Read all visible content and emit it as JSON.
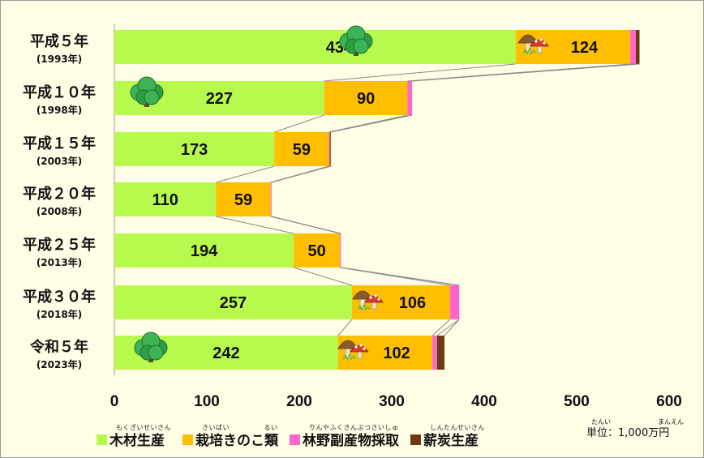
{
  "chart_data": {
    "type": "bar",
    "orientation": "horizontal",
    "stacked": true,
    "categories": [
      {
        "era": "平成５年",
        "year": "(1993年)"
      },
      {
        "era": "平成１０年",
        "year": "(1998年)"
      },
      {
        "era": "平成１５年",
        "year": "(2003年)"
      },
      {
        "era": "平成２０年",
        "year": "(2008年)"
      },
      {
        "era": "平成２５年",
        "year": "(2013年)"
      },
      {
        "era": "平成３０年",
        "year": "(2018年)"
      },
      {
        "era": "令和５年",
        "year": "(2023年)"
      }
    ],
    "series": [
      {
        "name": "木材生産",
        "ruby": "もくざいせいさん",
        "color": "#b7f94d",
        "values": [
          434,
          227,
          173,
          110,
          194,
          257,
          242
        ]
      },
      {
        "name": "栽培きのこ類",
        "ruby": "さいばい　　　　　るい",
        "color": "#ffbf00",
        "values": [
          124,
          90,
          59,
          59,
          50,
          106,
          102
        ]
      },
      {
        "name": "林野副産物採取",
        "ruby": "りんやふくさんぶつさいしゅ",
        "color": "#ff66cc",
        "values": [
          6,
          5,
          1,
          1,
          1,
          10,
          5
        ]
      },
      {
        "name": "薪炭生産",
        "ruby": "しんたんせいさん",
        "color": "#6b3a12",
        "values": [
          4,
          0,
          1,
          0,
          0,
          0,
          8
        ]
      }
    ],
    "value_labels": {
      "木材生産": [
        "434",
        "227",
        "173",
        "110",
        "194",
        "257",
        "242"
      ],
      "栽培きのこ類": [
        "124",
        "90",
        "59",
        "59",
        "50",
        "106",
        "102"
      ]
    },
    "xlim": [
      0,
      600
    ],
    "xticks": [
      "0",
      "100",
      "200",
      "300",
      "400",
      "500",
      "600"
    ],
    "connector_lines": true,
    "legend_position": "bottom",
    "decorations": {
      "tree_icons_rows": [
        0,
        1,
        6
      ],
      "mushroom_icons_rows": [
        0,
        5,
        6
      ]
    }
  },
  "unit": {
    "ruby_1": "たんい",
    "ruby_2": "まんえん",
    "text": "単位：1,000万円"
  }
}
